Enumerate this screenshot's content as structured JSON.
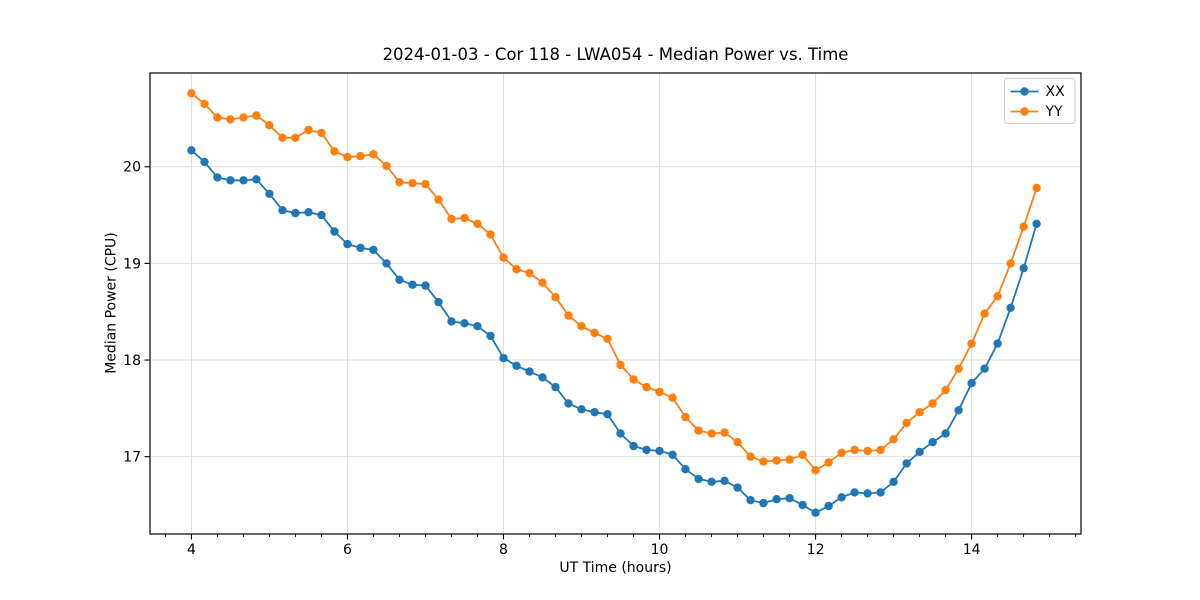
{
  "figure": {
    "title": "2024-01-03 - Cor 118 - LWA054 - Median Power vs. Time",
    "xlabel": "UT Time (hours)",
    "ylabel": "Median Power (CPU)"
  },
  "chart_data": {
    "type": "line",
    "title": "2024-01-03 - Cor 118 - LWA054 - Median Power vs. Time",
    "xlabel": "UT Time (hours)",
    "ylabel": "Median Power (CPU)",
    "xlim": [
      3.469,
      15.402
    ],
    "ylim": [
      16.2,
      20.97
    ],
    "x_ticks": [
      4,
      6,
      8,
      10,
      12,
      14
    ],
    "y_ticks": [
      17,
      18,
      19,
      20
    ],
    "x_minor_tick_step": 0.3333,
    "grid": true,
    "grid_color": "#dddddd",
    "legend_position": "upper right",
    "marker": "circle",
    "x": [
      4.0,
      4.167,
      4.333,
      4.5,
      4.667,
      4.833,
      5.0,
      5.167,
      5.333,
      5.5,
      5.667,
      5.833,
      6.0,
      6.167,
      6.333,
      6.5,
      6.667,
      6.833,
      7.0,
      7.167,
      7.333,
      7.5,
      7.667,
      7.833,
      8.0,
      8.167,
      8.333,
      8.5,
      8.667,
      8.833,
      9.0,
      9.167,
      9.333,
      9.5,
      9.667,
      9.833,
      10.0,
      10.167,
      10.333,
      10.5,
      10.667,
      10.833,
      11.0,
      11.167,
      11.333,
      11.5,
      11.667,
      11.833,
      12.0,
      12.167,
      12.333,
      12.5,
      12.667,
      12.833,
      13.0,
      13.167,
      13.333,
      13.5,
      13.667,
      13.833,
      14.0,
      14.167,
      14.333,
      14.5,
      14.667,
      14.833
    ],
    "series": [
      {
        "name": "XX",
        "color": "#1f77b4",
        "values": [
          20.17,
          20.05,
          19.89,
          19.86,
          19.86,
          19.87,
          19.72,
          19.55,
          19.52,
          19.53,
          19.5,
          19.33,
          19.2,
          19.16,
          19.14,
          19.0,
          18.83,
          18.78,
          18.77,
          18.6,
          18.4,
          18.38,
          18.35,
          18.25,
          18.02,
          17.94,
          17.88,
          17.82,
          17.72,
          17.55,
          17.49,
          17.46,
          17.44,
          17.24,
          17.11,
          17.07,
          17.06,
          17.02,
          16.87,
          16.77,
          16.74,
          16.75,
          16.68,
          16.55,
          16.52,
          16.56,
          16.57,
          16.5,
          16.42,
          16.49,
          16.58,
          16.63,
          16.62,
          16.63,
          16.74,
          16.93,
          17.05,
          17.15,
          17.24,
          17.48,
          17.76,
          17.91,
          18.17,
          18.54,
          18.95,
          19.41
        ]
      },
      {
        "name": "YY",
        "color": "#ff7f0e",
        "values": [
          20.76,
          20.65,
          20.51,
          20.49,
          20.51,
          20.53,
          20.43,
          20.3,
          20.3,
          20.38,
          20.35,
          20.16,
          20.1,
          20.11,
          20.13,
          20.01,
          19.84,
          19.83,
          19.82,
          19.66,
          19.46,
          19.47,
          19.41,
          19.3,
          19.06,
          18.94,
          18.9,
          18.8,
          18.65,
          18.46,
          18.35,
          18.28,
          18.22,
          17.95,
          17.8,
          17.72,
          17.67,
          17.61,
          17.41,
          17.27,
          17.24,
          17.25,
          17.15,
          17.0,
          16.95,
          16.96,
          16.97,
          17.02,
          16.86,
          16.94,
          17.04,
          17.07,
          17.06,
          17.07,
          17.18,
          17.35,
          17.46,
          17.55,
          17.69,
          17.91,
          18.17,
          18.48,
          18.66,
          19.0,
          19.38,
          19.78
        ]
      }
    ]
  }
}
